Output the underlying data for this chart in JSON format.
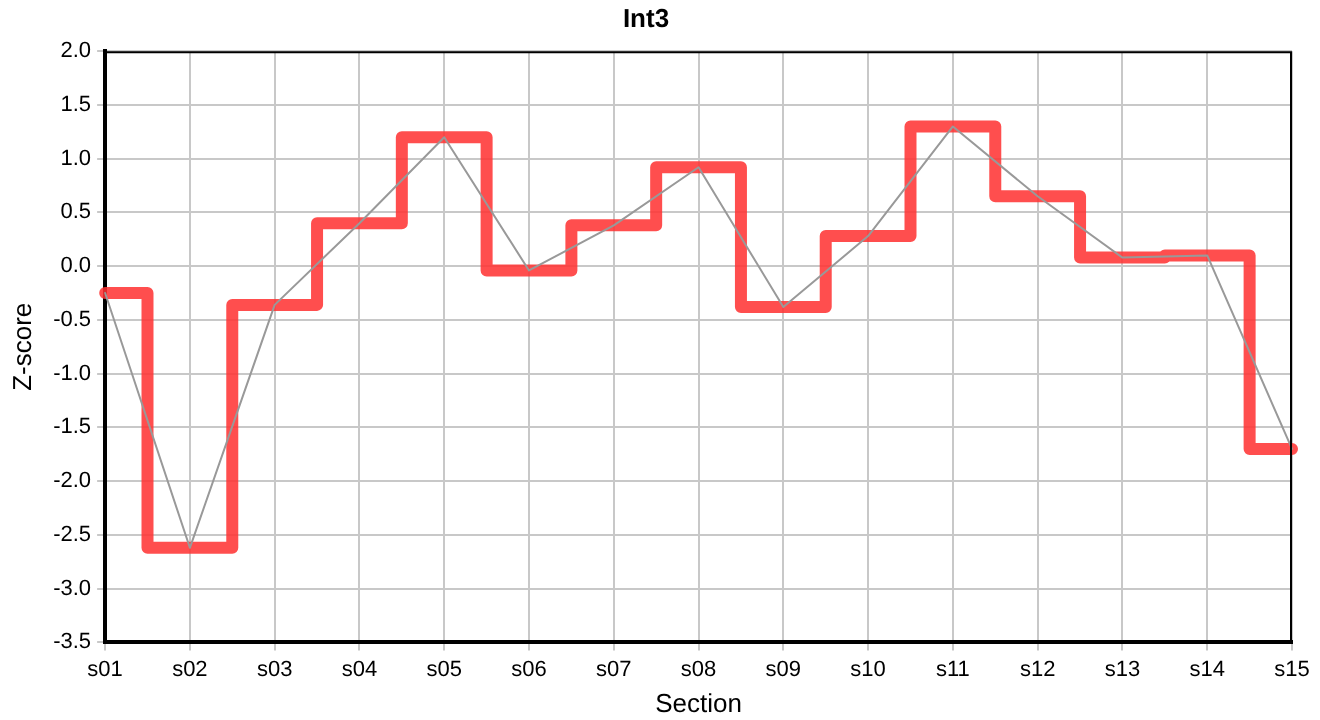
{
  "chart_data": {
    "type": "line",
    "title": "Int3",
    "xlabel": "Section",
    "ylabel": "Z-score",
    "categories": [
      "s01",
      "s02",
      "s03",
      "s04",
      "s05",
      "s06",
      "s07",
      "s08",
      "s09",
      "s10",
      "s11",
      "s12",
      "s13",
      "s14",
      "s15"
    ],
    "series": [
      {
        "type": "line",
        "color": "#999999",
        "values": [
          -0.25,
          -2.62,
          -0.36,
          0.4,
          1.2,
          -0.04,
          0.38,
          0.92,
          -0.38,
          0.28,
          1.3,
          0.65,
          0.08,
          0.1,
          -1.7
        ]
      },
      {
        "type": "step",
        "color": "#ff3333",
        "values": [
          -0.25,
          -2.62,
          -0.36,
          0.4,
          1.2,
          -0.04,
          0.38,
          0.92,
          -0.38,
          0.28,
          1.3,
          0.65,
          0.08,
          0.1,
          -1.7
        ]
      }
    ],
    "ylim": [
      -3.5,
      2.0
    ],
    "yticks": [
      {
        "value": -3.5,
        "label": "-3.5"
      },
      {
        "value": -3,
        "label": "-3.0"
      },
      {
        "value": -2.5,
        "label": "-2.5"
      },
      {
        "value": -2,
        "label": "-2.0"
      },
      {
        "value": -1.5,
        "label": "-1.5"
      },
      {
        "value": -1,
        "label": "-1.0"
      },
      {
        "value": -0.5,
        "label": "-0.5"
      },
      {
        "value": 0,
        "label": "0.0"
      },
      {
        "value": 0.5,
        "label": "0.5"
      },
      {
        "value": 1,
        "label": "1.0"
      },
      {
        "value": 1.5,
        "label": "1.5"
      },
      {
        "value": 2,
        "label": "2.0"
      }
    ],
    "grid": true,
    "legend": false,
    "marker": "none"
  }
}
